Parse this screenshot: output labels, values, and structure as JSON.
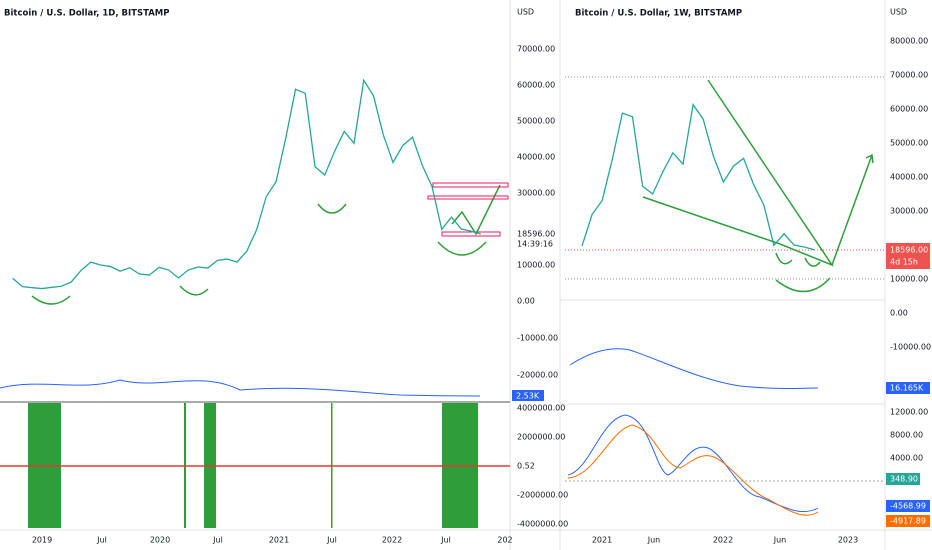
{
  "left": {
    "title": "Bitcoin / U.S. Dollar, 1D, BITSTAMP",
    "currency": "USD",
    "price_ticks": [
      {
        "value": 70000,
        "label": "70000.00"
      },
      {
        "value": 60000,
        "label": "60000.00"
      },
      {
        "value": 50000,
        "label": "50000.00"
      },
      {
        "value": 40000,
        "label": "40000.00"
      },
      {
        "value": 30000,
        "label": "30000.00"
      },
      {
        "value": 10000,
        "label": "10000.00"
      }
    ],
    "last_price": "18596.00",
    "countdown": "14:39:16",
    "volume_ticks": [
      {
        "value": 0,
        "label": "0.00"
      },
      {
        "value": -10000,
        "label": "-10000.00"
      },
      {
        "value": -20000,
        "label": "-20000.00"
      }
    ],
    "volume_label": "2.53K",
    "osc_ticks": [
      {
        "value": 4000000,
        "label": "4000000.00"
      },
      {
        "value": 2000000,
        "label": "2000000.00"
      },
      {
        "value": -2000000,
        "label": "-2000000.00"
      },
      {
        "value": -4000000,
        "label": "-4000000.00"
      }
    ],
    "osc_level": "0.52",
    "date_labels": [
      "2019",
      "Jul",
      "2020",
      "Jul",
      "2021",
      "Jul",
      "2022",
      "Jul",
      "202"
    ],
    "closes": [
      6300,
      4000,
      3700,
      3450,
      3800,
      4100,
      5300,
      8500,
      10800,
      10000,
      9600,
      8300,
      9200,
      7500,
      7200,
      9350,
      8600,
      6400,
      8600,
      9450,
      9150,
      11300,
      11650,
      10800,
      13800,
      19700,
      29000,
      33100,
      45200,
      58800,
      57700,
      37300,
      35000,
      41500,
      47100,
      43800,
      61300,
      57000,
      46200,
      38500,
      43200,
      45500,
      37700,
      31800,
      19900,
      23300,
      20000,
      19400,
      18596
    ]
  },
  "right": {
    "title": "Bitcoin / U.S. Dollar, 1W, BITSTAMP",
    "currency": "USD",
    "price_ticks": [
      {
        "value": 80000,
        "label": "80000.00"
      },
      {
        "value": 70000,
        "label": "70000.00"
      },
      {
        "value": 60000,
        "label": "60000.00"
      },
      {
        "value": 50000,
        "label": "50000.00"
      },
      {
        "value": 40000,
        "label": "40000.00"
      },
      {
        "value": 30000,
        "label": "30000.00"
      },
      {
        "value": 10000,
        "label": "10000.00"
      }
    ],
    "last_price": "18596.00",
    "countdown": "4d 15h",
    "volume_ticks": [
      {
        "value": 0,
        "label": "0.00"
      },
      {
        "value": -10000,
        "label": "-10000.00"
      }
    ],
    "volume_label": "16.165K",
    "macd_ticks": [
      {
        "value": 12000,
        "label": "12000.00"
      },
      {
        "value": 8000,
        "label": "8000.00"
      },
      {
        "value": 4000,
        "label": "4000.00"
      }
    ],
    "macd_hist": "348.90",
    "macd_line": "-4568.99",
    "macd_signal": "-4917.89",
    "date_labels": [
      "2021",
      "Jun",
      "2022",
      "Jun",
      "2023"
    ],
    "closes": [
      19700,
      29000,
      33100,
      45200,
      58800,
      57700,
      37300,
      35000,
      41500,
      47100,
      43800,
      61300,
      57000,
      46200,
      38500,
      43200,
      45500,
      37700,
      31800,
      19900,
      23300,
      20000,
      19400,
      18596
    ]
  }
}
